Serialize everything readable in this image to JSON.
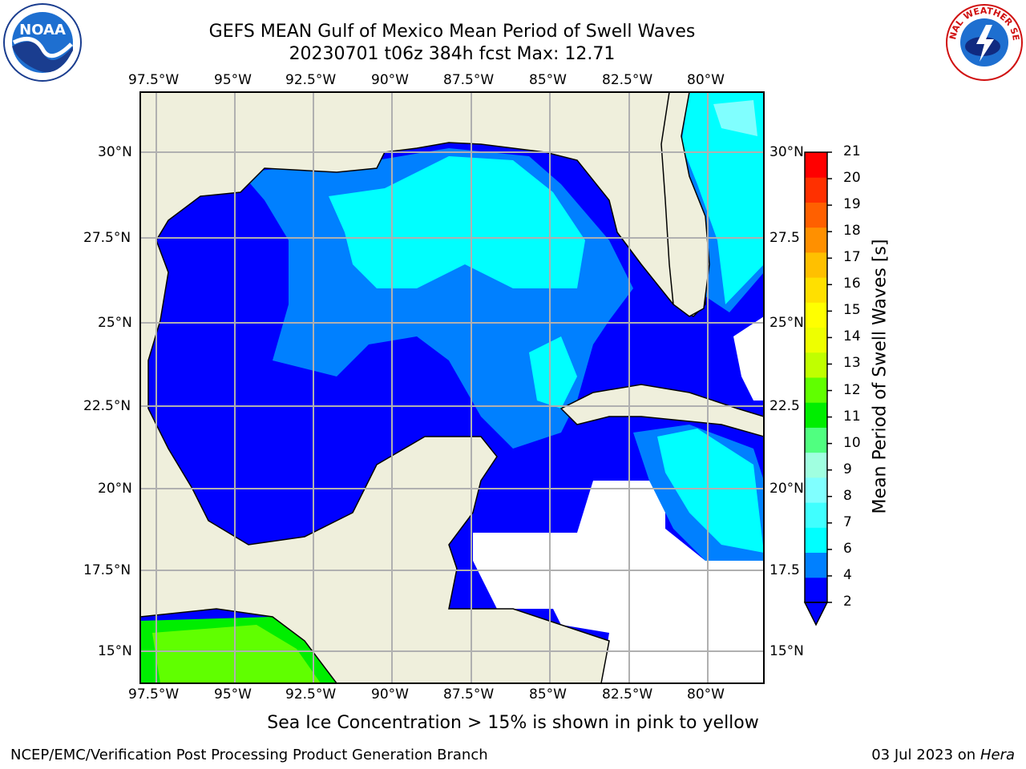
{
  "header": {
    "title": "GEFS MEAN Gulf of Mexico Mean Period of Swell Waves",
    "subtitle": "20230701 t06z 384h fcst   Max: 12.71"
  },
  "axes": {
    "lon_labels": [
      "97.5°W",
      "95°W",
      "92.5°W",
      "90°W",
      "87.5°W",
      "85°W",
      "82.5°W",
      "80°W"
    ],
    "lon_values": [
      -97.5,
      -95,
      -92.5,
      -90,
      -87.5,
      -85,
      -82.5,
      -80
    ],
    "lat_labels_left": [
      "30°N",
      "27.5°N",
      "25°N",
      "22.5°N",
      "20°N",
      "17.5°N",
      "15°N"
    ],
    "lat_labels_right": [
      "30°N",
      "27.5",
      "25°N",
      "22.5",
      "20°N",
      "17.5",
      "15°N"
    ],
    "lat_values": [
      30,
      27.5,
      25,
      22.5,
      20,
      17.5,
      15
    ],
    "lon_range": [
      -98,
      -78.2
    ],
    "lat_range": [
      14.0,
      31.9
    ]
  },
  "colorbar": {
    "label": "Mean Period of Swell Waves [s]",
    "ticks": [
      "21",
      "20",
      "19",
      "18",
      "17",
      "16",
      "15",
      "14",
      "13",
      "12",
      "11",
      "10",
      "9",
      "8",
      "7",
      "6",
      "4",
      "2"
    ],
    "colors": [
      "#0000ff",
      "#0080ff",
      "#00ffff",
      "#40ffff",
      "#80ffff",
      "#a0ffe0",
      "#50ff80",
      "#00ee00",
      "#60ff00",
      "#c0ff00",
      "#eeff00",
      "#ffff00",
      "#ffe000",
      "#ffc000",
      "#ff9000",
      "#ff6000",
      "#ff3000",
      "#ff0000"
    ],
    "under_color": "#0000ff"
  },
  "colors": {
    "land": "#efefdc",
    "ocean_low": "#0000ff",
    "ocean_mid": "#0080ff",
    "ocean_high": "#00ffff",
    "ocean_high2": "#40ffff",
    "swell_green": "#00ee00",
    "swell_lime": "#60ff00",
    "grid": "#b0b0b0"
  },
  "logos": {
    "left": "noara-logo",
    "left_text": "NOAA",
    "right": "nws-logo",
    "right_text": "NATIONAL WEATHER SERVICE"
  },
  "note": "Sea Ice Concentration > 15% is shown in pink to yellow",
  "footer": {
    "left": "NCEP/EMC/Verification Post Processing Product Generation Branch",
    "right_date": "03 Jul 2023 on ",
    "right_host": "Hera"
  }
}
